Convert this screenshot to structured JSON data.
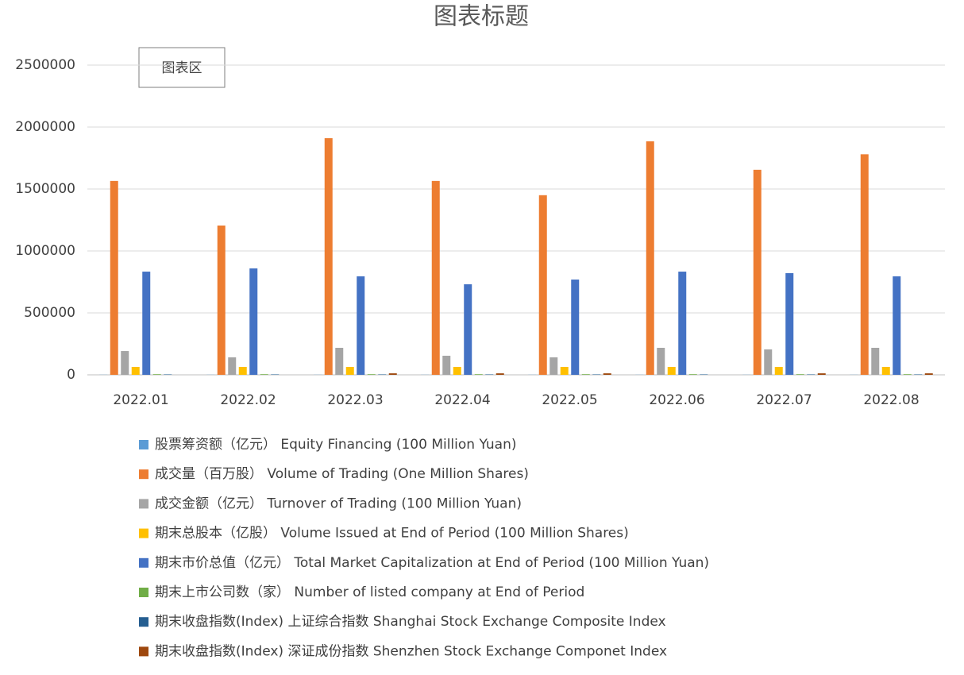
{
  "chart_data": {
    "type": "bar",
    "title": "图表标题",
    "annotation": "图表区",
    "categories": [
      "2022.01",
      "2022.02",
      "2022.03",
      "2022.04",
      "2022.05",
      "2022.06",
      "2022.07",
      "2022.08"
    ],
    "series": [
      {
        "name": "股票筹资额（亿元） Equity Financing (100 Million Yuan)",
        "color": "#5b9bd5",
        "values": [
          1000,
          1000,
          1000,
          1000,
          1000,
          1000,
          1000,
          1000
        ]
      },
      {
        "name": "成交量（百万股） Volume of Trading (One Million Shares)",
        "color": "#ed7d31",
        "values": [
          1565000,
          1205000,
          1910000,
          1565000,
          1450000,
          1885000,
          1655000,
          1780000
        ]
      },
      {
        "name": "成交金额（亿元） Turnover of Trading (100 Million Yuan)",
        "color": "#a5a5a5",
        "values": [
          192000,
          141000,
          218000,
          154000,
          141000,
          218000,
          205000,
          218000
        ]
      },
      {
        "name": "期末总股本（亿股） Volume Issued at End of Period (100 Million Shares)",
        "color": "#ffc000",
        "values": [
          64000,
          64000,
          64000,
          64000,
          64000,
          64000,
          64000,
          64000
        ]
      },
      {
        "name": "期末市价总值（亿元） Total Market Capitalization at End of Period (100 Million Yuan)",
        "color": "#4472c4",
        "values": [
          833000,
          859000,
          795000,
          731000,
          769000,
          833000,
          821000,
          795000
        ]
      },
      {
        "name": "期末上市公司数（家） Number of listed company at End of Period",
        "color": "#70ad47",
        "values": [
          4900,
          4900,
          4900,
          4900,
          4900,
          4900,
          4900,
          4900
        ]
      },
      {
        "name": "期末收盘指数(Index) 上证综合指数 Shanghai Stock Exchange Composite Index",
        "color": "#255e91",
        "values": [
          3300,
          3300,
          3300,
          3300,
          3300,
          3300,
          3300,
          3300
        ]
      },
      {
        "name": "期末收盘指数(Index) 深证成份指数 Shenzhen Stock Exchange Componet Index",
        "color": "#9e480e",
        "values": [
          null,
          null,
          12000,
          12000,
          12000,
          null,
          12000,
          12000
        ]
      }
    ],
    "ylim": [
      0,
      2500000
    ],
    "yticks": [
      0,
      500000,
      1000000,
      1500000,
      2000000,
      2500000
    ],
    "grid": true,
    "legend": "bottom"
  }
}
